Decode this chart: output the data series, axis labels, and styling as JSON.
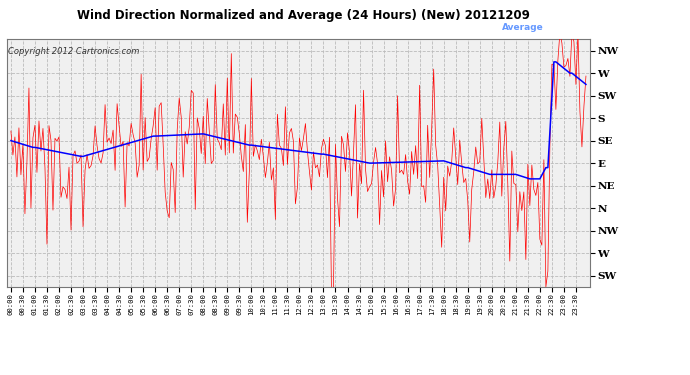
{
  "title": "Wind Direction Normalized and Average (24 Hours) (New) 20121209",
  "copyright": "Copyright 2012 Cartronics.com",
  "ytick_labels": [
    "SW",
    "W",
    "NW",
    "N",
    "NE",
    "E",
    "SE",
    "S",
    "SW",
    "W",
    "NW"
  ],
  "ytick_values": [
    0,
    1,
    2,
    3,
    4,
    5,
    6,
    7,
    8,
    9,
    10
  ],
  "ylim": [
    -0.5,
    10.5
  ],
  "bg_color": "#ffffff",
  "plot_bg": "#f0f0f0",
  "grid_color": "#bbbbbb",
  "red_color": "#ff0000",
  "blue_color": "#0000ff",
  "legend_avg_bg": "#cc0000",
  "legend_avg_text": "#6699ff",
  "legend_dir_bg": "#0000cc",
  "legend_dir_text": "#ffffff",
  "n_points": 288,
  "tick_every": 6
}
